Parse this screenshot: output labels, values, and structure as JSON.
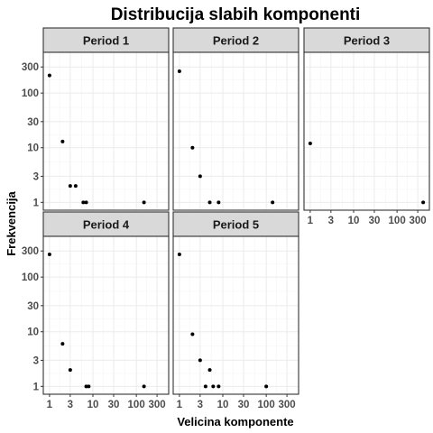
{
  "chart_data": {
    "type": "scatter",
    "title": "Distribucija slabih komponenti",
    "xlabel": "Velicina komponente",
    "ylabel": "Frekvencija",
    "x_scale": "log",
    "y_scale": "log",
    "xlim": [
      1,
      400
    ],
    "ylim": [
      1,
      400
    ],
    "x_ticks": [
      1,
      3,
      10,
      30,
      100,
      300
    ],
    "y_ticks": [
      1,
      3,
      10,
      30,
      100,
      300
    ],
    "x_tick_labels": [
      "1",
      "3",
      "10",
      "30",
      "100",
      "300"
    ],
    "y_tick_labels": [
      "1",
      "3",
      "10",
      "30",
      "100",
      "300"
    ],
    "grid": true,
    "panels": [
      {
        "label": "Period 1",
        "points": [
          {
            "x": 1,
            "y": 210
          },
          {
            "x": 2,
            "y": 13
          },
          {
            "x": 3,
            "y": 2
          },
          {
            "x": 4,
            "y": 2
          },
          {
            "x": 6,
            "y": 1
          },
          {
            "x": 7,
            "y": 1
          },
          {
            "x": 150,
            "y": 1
          }
        ]
      },
      {
        "label": "Period 2",
        "points": [
          {
            "x": 1,
            "y": 250
          },
          {
            "x": 2,
            "y": 10
          },
          {
            "x": 3,
            "y": 3
          },
          {
            "x": 5,
            "y": 1
          },
          {
            "x": 8,
            "y": 1
          },
          {
            "x": 140,
            "y": 1
          }
        ]
      },
      {
        "label": "Period 3",
        "points": [
          {
            "x": 1,
            "y": 12
          },
          {
            "x": 400,
            "y": 1
          }
        ]
      },
      {
        "label": "Period 4",
        "points": [
          {
            "x": 1,
            "y": 260
          },
          {
            "x": 2,
            "y": 6
          },
          {
            "x": 3,
            "y": 2
          },
          {
            "x": 7,
            "y": 1
          },
          {
            "x": 8,
            "y": 1
          },
          {
            "x": 150,
            "y": 1
          }
        ]
      },
      {
        "label": "Period 5",
        "points": [
          {
            "x": 1,
            "y": 260
          },
          {
            "x": 2,
            "y": 9
          },
          {
            "x": 3,
            "y": 3
          },
          {
            "x": 4,
            "y": 1
          },
          {
            "x": 5,
            "y": 2
          },
          {
            "x": 6,
            "y": 1
          },
          {
            "x": 8,
            "y": 1
          },
          {
            "x": 100,
            "y": 1
          }
        ]
      }
    ]
  }
}
